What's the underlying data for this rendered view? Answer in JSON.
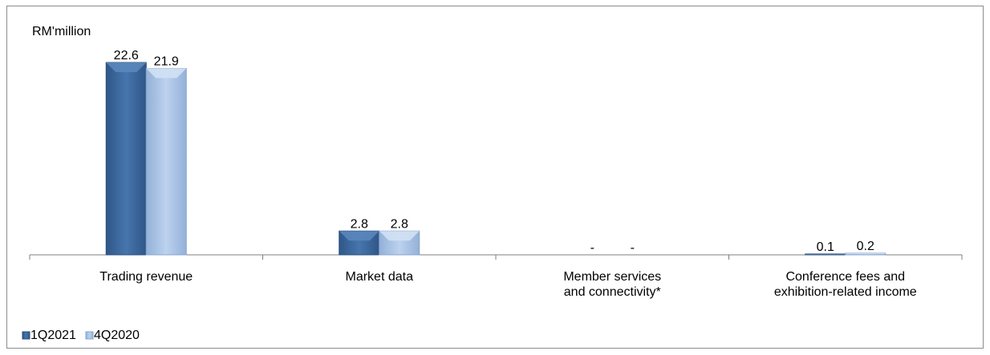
{
  "chart_data": {
    "type": "bar",
    "y_unit_label": "RM'million",
    "categories": [
      [
        "Trading revenue"
      ],
      [
        "Market data"
      ],
      [
        "Member services",
        "and connectivity*"
      ],
      [
        "Conference fees and",
        "exhibition-related income"
      ]
    ],
    "series": [
      {
        "name": "1Q2021",
        "color": "#3d6aa0",
        "values": [
          22.6,
          2.8,
          0,
          0.1
        ],
        "labels": [
          "22.6",
          "2.8",
          "-",
          "0.1"
        ]
      },
      {
        "name": "4Q2020",
        "color": "#a9c3e5",
        "values": [
          21.9,
          2.8,
          0,
          0.2
        ],
        "labels": [
          "21.9",
          "2.8",
          "-",
          "0.2"
        ]
      }
    ],
    "legend_position": "bottom-left",
    "grid": false
  }
}
